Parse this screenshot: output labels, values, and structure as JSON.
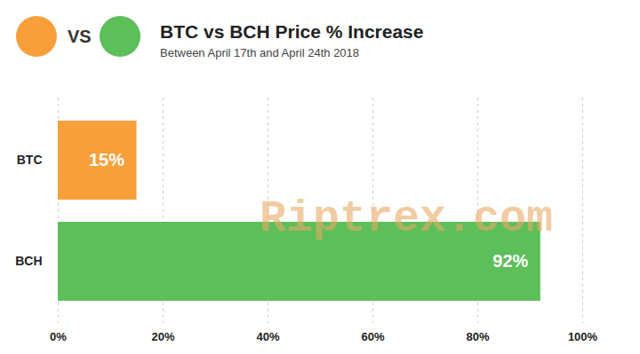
{
  "chart_data": {
    "type": "bar",
    "orientation": "horizontal",
    "title": "BTC vs BCH Price % Increase",
    "subtitle": "Between April 17th and April 24th 2018",
    "header_text": "VS",
    "annotation": "Riptrex.com",
    "categories": [
      "BTC",
      "BCH"
    ],
    "values": [
      15,
      92
    ],
    "value_labels": [
      "15%",
      "92%"
    ],
    "colors": [
      "#f7a03a",
      "#5cbf5a"
    ],
    "data_labels": true,
    "xlim": [
      0,
      100
    ],
    "xticks": [
      {
        "value": 0,
        "label": "0%"
      },
      {
        "value": 20,
        "label": "20%"
      },
      {
        "value": 40,
        "label": "40%"
      },
      {
        "value": 60,
        "label": "60%"
      },
      {
        "value": 80,
        "label": "80%"
      },
      {
        "value": 100,
        "label": "100%"
      }
    ],
    "grid": true
  }
}
